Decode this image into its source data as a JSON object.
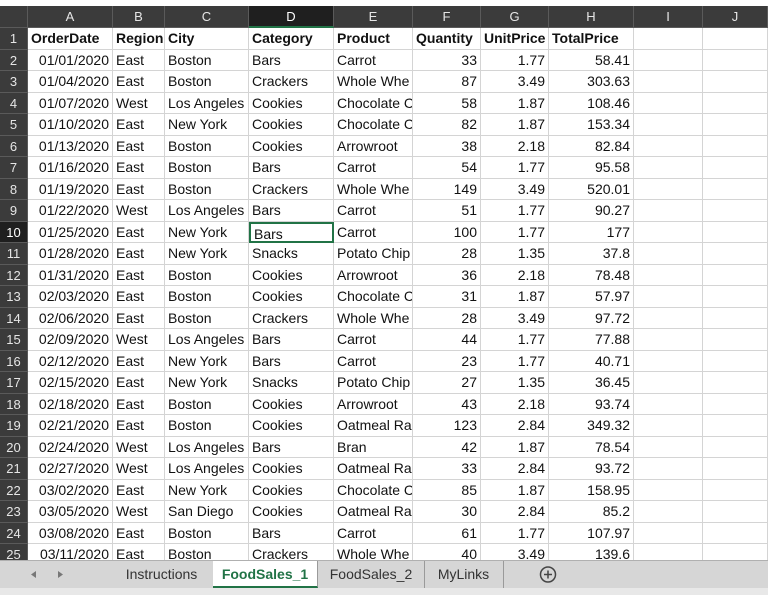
{
  "columns": [
    "A",
    "B",
    "C",
    "D",
    "E",
    "F",
    "G",
    "H",
    "I",
    "J"
  ],
  "row_numbers": [
    "1",
    "2",
    "3",
    "4",
    "5",
    "6",
    "7",
    "8",
    "9",
    "10",
    "11",
    "12",
    "13",
    "14",
    "15",
    "16",
    "17",
    "18",
    "19",
    "20",
    "21",
    "22",
    "23",
    "24",
    "25"
  ],
  "rows": [
    [
      "OrderDate",
      "Region",
      "City",
      "Category",
      "Product",
      "Quantity",
      "UnitPrice",
      "TotalPrice"
    ],
    [
      "01/01/2020",
      "East",
      "Boston",
      "Bars",
      "Carrot",
      "33",
      "1.77",
      "58.41"
    ],
    [
      "01/04/2020",
      "East",
      "Boston",
      "Crackers",
      "Whole Whe",
      "87",
      "3.49",
      "303.63"
    ],
    [
      "01/07/2020",
      "West",
      "Los Angeles",
      "Cookies",
      "Chocolate C",
      "58",
      "1.87",
      "108.46"
    ],
    [
      "01/10/2020",
      "East",
      "New York",
      "Cookies",
      "Chocolate C",
      "82",
      "1.87",
      "153.34"
    ],
    [
      "01/13/2020",
      "East",
      "Boston",
      "Cookies",
      "Arrowroot",
      "38",
      "2.18",
      "82.84"
    ],
    [
      "01/16/2020",
      "East",
      "Boston",
      "Bars",
      "Carrot",
      "54",
      "1.77",
      "95.58"
    ],
    [
      "01/19/2020",
      "East",
      "Boston",
      "Crackers",
      "Whole Whe",
      "149",
      "3.49",
      "520.01"
    ],
    [
      "01/22/2020",
      "West",
      "Los Angeles",
      "Bars",
      "Carrot",
      "51",
      "1.77",
      "90.27"
    ],
    [
      "01/25/2020",
      "East",
      "New York",
      "Bars",
      "Carrot",
      "100",
      "1.77",
      "177"
    ],
    [
      "01/28/2020",
      "East",
      "New York",
      "Snacks",
      "Potato Chip",
      "28",
      "1.35",
      "37.8"
    ],
    [
      "01/31/2020",
      "East",
      "Boston",
      "Cookies",
      "Arrowroot",
      "36",
      "2.18",
      "78.48"
    ],
    [
      "02/03/2020",
      "East",
      "Boston",
      "Cookies",
      "Chocolate C",
      "31",
      "1.87",
      "57.97"
    ],
    [
      "02/06/2020",
      "East",
      "Boston",
      "Crackers",
      "Whole Whe",
      "28",
      "3.49",
      "97.72"
    ],
    [
      "02/09/2020",
      "West",
      "Los Angeles",
      "Bars",
      "Carrot",
      "44",
      "1.77",
      "77.88"
    ],
    [
      "02/12/2020",
      "East",
      "New York",
      "Bars",
      "Carrot",
      "23",
      "1.77",
      "40.71"
    ],
    [
      "02/15/2020",
      "East",
      "New York",
      "Snacks",
      "Potato Chip",
      "27",
      "1.35",
      "36.45"
    ],
    [
      "02/18/2020",
      "East",
      "Boston",
      "Cookies",
      "Arrowroot",
      "43",
      "2.18",
      "93.74"
    ],
    [
      "02/21/2020",
      "East",
      "Boston",
      "Cookies",
      "Oatmeal Ra",
      "123",
      "2.84",
      "349.32"
    ],
    [
      "02/24/2020",
      "West",
      "Los Angeles",
      "Bars",
      "Bran",
      "42",
      "1.87",
      "78.54"
    ],
    [
      "02/27/2020",
      "West",
      "Los Angeles",
      "Cookies",
      "Oatmeal Ra",
      "33",
      "2.84",
      "93.72"
    ],
    [
      "03/02/2020",
      "East",
      "New York",
      "Cookies",
      "Chocolate C",
      "85",
      "1.87",
      "158.95"
    ],
    [
      "03/05/2020",
      "West",
      "San Diego",
      "Cookies",
      "Oatmeal Ra",
      "30",
      "2.84",
      "85.2"
    ],
    [
      "03/08/2020",
      "East",
      "Boston",
      "Bars",
      "Carrot",
      "61",
      "1.77",
      "107.97"
    ],
    [
      "03/11/2020",
      "East",
      "Boston",
      "Crackers",
      "Whole Whe",
      "40",
      "3.49",
      "139.6"
    ]
  ],
  "tabs": [
    "Instructions",
    "FoodSales_1",
    "FoodSales_2",
    "MyLinks"
  ]
}
